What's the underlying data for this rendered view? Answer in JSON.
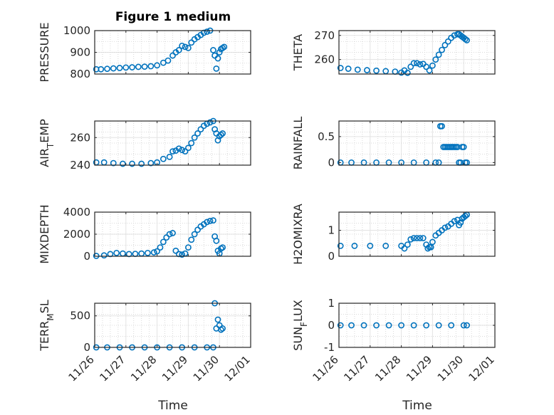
{
  "figure": {
    "title": "Figure 1 medium",
    "marker_color": "#0072BD",
    "x_ticks": [
      "11/26",
      "11/27",
      "11/28",
      "11/29",
      "11/30",
      "12/01"
    ],
    "x_range": [
      0,
      5
    ],
    "x_label": "Time"
  },
  "chart_data": [
    {
      "type": "scatter",
      "ylabel": "PRESSURE",
      "ylim": [
        800,
        1000
      ],
      "yticks": [
        800,
        900,
        1000
      ],
      "grid": true,
      "panel": "top-left",
      "x": [
        0.05,
        0.2,
        0.4,
        0.6,
        0.8,
        1.0,
        1.2,
        1.4,
        1.6,
        1.8,
        2.0,
        2.2,
        2.35,
        2.5,
        2.6,
        2.7,
        2.8,
        2.9,
        3.0,
        3.1,
        3.2,
        3.3,
        3.4,
        3.5,
        3.6,
        3.7,
        3.8,
        3.85,
        3.9,
        3.95,
        4.0,
        4.05,
        4.1,
        4.15
      ],
      "y": [
        822,
        822,
        824,
        826,
        828,
        830,
        831,
        833,
        834,
        836,
        840,
        852,
        862,
        885,
        900,
        910,
        930,
        925,
        920,
        945,
        960,
        970,
        980,
        990,
        995,
        1000,
        910,
        885,
        825,
        872,
        900,
        915,
        920,
        925
      ]
    },
    {
      "type": "scatter",
      "ylabel": "THETA",
      "ylim": [
        254,
        272
      ],
      "yticks": [
        260,
        270
      ],
      "grid": true,
      "panel": "top-right",
      "x": [
        0.05,
        0.3,
        0.6,
        0.9,
        1.2,
        1.5,
        1.8,
        2.0,
        2.1,
        2.2,
        2.3,
        2.4,
        2.5,
        2.6,
        2.7,
        2.8,
        2.9,
        3.0,
        3.1,
        3.2,
        3.3,
        3.4,
        3.5,
        3.6,
        3.7,
        3.8,
        3.85,
        3.9,
        3.95,
        4.0,
        4.05,
        4.1
      ],
      "y": [
        256.5,
        256.2,
        255.8,
        255.6,
        255.4,
        255.2,
        255,
        254.6,
        255.5,
        254.5,
        257,
        258.5,
        258.5,
        258,
        258.2,
        257,
        255.5,
        257.5,
        260,
        262,
        264,
        266,
        267.5,
        269,
        270,
        270.5,
        270.5,
        270,
        269.5,
        269,
        268.5,
        268
      ]
    },
    {
      "type": "scatter",
      "ylabel": "AIR_TEMP",
      "ylim": [
        240,
        272
      ],
      "yticks": [
        240,
        260
      ],
      "grid": true,
      "panel": "mid-top-left",
      "x": [
        0.05,
        0.3,
        0.6,
        0.9,
        1.2,
        1.5,
        1.8,
        2.0,
        2.2,
        2.4,
        2.5,
        2.6,
        2.7,
        2.8,
        2.9,
        3.0,
        3.1,
        3.2,
        3.3,
        3.4,
        3.5,
        3.6,
        3.7,
        3.8,
        3.85,
        3.9,
        3.95,
        4.0,
        4.05,
        4.1
      ],
      "y": [
        242,
        242,
        241.5,
        241,
        241,
        241,
        241.5,
        242,
        244.5,
        246,
        250,
        250.5,
        252,
        251,
        250,
        252.5,
        256,
        260,
        263,
        266,
        268.5,
        270,
        271,
        272,
        266,
        263,
        258,
        261,
        262,
        263
      ]
    },
    {
      "type": "scatter",
      "ylabel": "RAINFALL",
      "ylim": [
        -0.05,
        0.8
      ],
      "yticks": [
        0,
        0.5
      ],
      "grid": true,
      "panel": "mid-top-right",
      "x": [
        0.05,
        0.4,
        0.8,
        1.2,
        1.6,
        2.0,
        2.4,
        2.8,
        3.1,
        3.2,
        3.25,
        3.3,
        3.35,
        3.4,
        3.45,
        3.5,
        3.55,
        3.6,
        3.65,
        3.7,
        3.75,
        3.8,
        3.85,
        3.9,
        3.95,
        4.0,
        4.05,
        4.1
      ],
      "y": [
        0,
        0,
        0,
        0,
        0,
        0,
        0,
        0,
        0,
        0,
        0.7,
        0.7,
        0.3,
        0.3,
        0.3,
        0.3,
        0.3,
        0.3,
        0.3,
        0.3,
        0.3,
        0.3,
        0,
        0,
        0.3,
        0.3,
        0,
        0
      ]
    },
    {
      "type": "scatter",
      "ylabel": "MIXDEPTH",
      "ylim": [
        0,
        4000
      ],
      "yticks": [
        0,
        2000,
        4000
      ],
      "grid": true,
      "panel": "mid-bottom-left",
      "x": [
        0.05,
        0.3,
        0.5,
        0.7,
        0.9,
        1.1,
        1.3,
        1.5,
        1.7,
        1.9,
        2.0,
        2.1,
        2.2,
        2.3,
        2.4,
        2.5,
        2.6,
        2.7,
        2.8,
        2.9,
        3.0,
        3.1,
        3.2,
        3.3,
        3.4,
        3.5,
        3.6,
        3.7,
        3.8,
        3.85,
        3.9,
        3.95,
        4.0,
        4.05,
        4.1
      ],
      "y": [
        30,
        80,
        200,
        300,
        250,
        200,
        220,
        250,
        300,
        350,
        450,
        800,
        1300,
        1700,
        2000,
        2100,
        500,
        200,
        150,
        250,
        800,
        1500,
        2000,
        2400,
        2700,
        2900,
        3100,
        3200,
        3250,
        1800,
        1400,
        500,
        250,
        700,
        800
      ]
    },
    {
      "type": "scatter",
      "ylabel": "H2OMIXRA",
      "ylim": [
        0,
        1.7
      ],
      "yticks": [
        0,
        1
      ],
      "grid": true,
      "panel": "mid-bottom-right",
      "x": [
        0.05,
        0.5,
        1.0,
        1.5,
        2.0,
        2.1,
        2.2,
        2.3,
        2.4,
        2.5,
        2.6,
        2.7,
        2.8,
        2.85,
        2.9,
        2.95,
        3.0,
        3.1,
        3.2,
        3.3,
        3.4,
        3.5,
        3.6,
        3.7,
        3.8,
        3.85,
        3.9,
        3.95,
        4.0,
        4.05,
        4.1
      ],
      "y": [
        0.4,
        0.4,
        0.4,
        0.4,
        0.4,
        0.3,
        0.45,
        0.65,
        0.7,
        0.7,
        0.7,
        0.7,
        0.45,
        0.3,
        0.35,
        0.35,
        0.55,
        0.8,
        0.9,
        1.0,
        1.1,
        1.15,
        1.25,
        1.35,
        1.4,
        1.2,
        1.3,
        1.45,
        1.5,
        1.55,
        1.6
      ]
    },
    {
      "type": "scatter",
      "ylabel": "TERR_MSL",
      "ylim": [
        0,
        700
      ],
      "yticks": [
        0,
        500
      ],
      "grid": true,
      "panel": "bottom-left",
      "x": [
        0.05,
        0.4,
        0.8,
        1.2,
        1.6,
        2.0,
        2.4,
        2.8,
        3.2,
        3.6,
        3.8,
        3.85,
        3.9,
        3.95,
        4.0,
        4.05,
        4.1
      ],
      "y": [
        0,
        0,
        0,
        0,
        0,
        0,
        0,
        0,
        0,
        0,
        0,
        700,
        300,
        440,
        350,
        280,
        300
      ]
    },
    {
      "type": "scatter",
      "ylabel": "SUN_FLUX",
      "ylim": [
        -1,
        1
      ],
      "yticks": [
        -1,
        0,
        1
      ],
      "grid": true,
      "panel": "bottom-right",
      "x": [
        0.05,
        0.4,
        0.8,
        1.2,
        1.6,
        2.0,
        2.4,
        2.8,
        3.2,
        3.6,
        4.0,
        4.1
      ],
      "y": [
        0,
        0,
        0,
        0,
        0,
        0,
        0,
        0,
        0,
        0,
        0,
        0
      ]
    }
  ]
}
